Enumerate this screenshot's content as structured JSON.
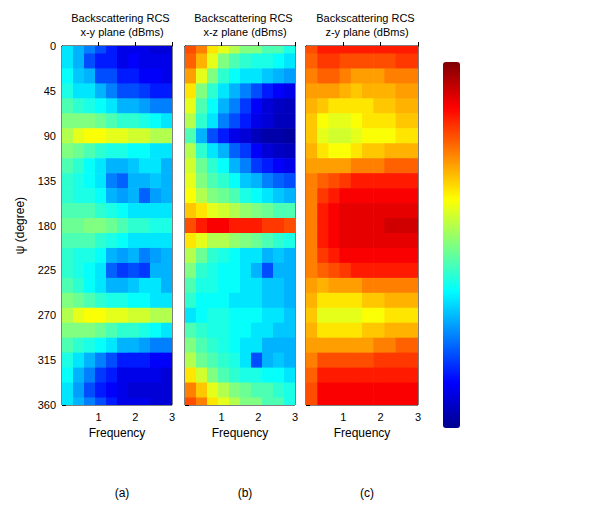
{
  "chart_data": [
    {
      "type": "heatmap",
      "title": "Backscattering RCS x-y plane (dBms)",
      "xlabel": "Frequency",
      "ylabel": "ψ (degree)",
      "caption": "(a)",
      "xlim": [
        0,
        3
      ],
      "xticks": [
        1,
        2,
        3
      ],
      "ylim": [
        0,
        360
      ],
      "yticks": [
        0,
        45,
        90,
        135,
        180,
        225,
        270,
        315,
        360
      ],
      "tick_labels": true,
      "x_edges": [
        0,
        0.3,
        0.6,
        0.9,
        1.2,
        1.5,
        1.8,
        2.1,
        2.4,
        2.7,
        3.0
      ],
      "y": [
        0,
        15,
        30,
        45,
        60,
        75,
        90,
        105,
        120,
        135,
        150,
        165,
        180,
        195,
        210,
        225,
        240,
        255,
        270,
        285,
        300,
        315,
        330,
        345,
        360
      ],
      "color_range": [
        0,
        1
      ],
      "color_ticks": [],
      "cells": [
        [
          0.35,
          0.3,
          0.25,
          0.2,
          0.15,
          0.1,
          0.1,
          0.1,
          0.08,
          0.08
        ],
        [
          0.35,
          0.3,
          0.2,
          0.15,
          0.15,
          0.1,
          0.12,
          0.1,
          0.1,
          0.1
        ],
        [
          0.38,
          0.32,
          0.3,
          0.2,
          0.2,
          0.15,
          0.15,
          0.12,
          0.12,
          0.1
        ],
        [
          0.4,
          0.35,
          0.35,
          0.3,
          0.25,
          0.2,
          0.2,
          0.18,
          0.15,
          0.15
        ],
        [
          0.45,
          0.42,
          0.4,
          0.38,
          0.35,
          0.3,
          0.3,
          0.28,
          0.25,
          0.25
        ],
        [
          0.5,
          0.5,
          0.5,
          0.48,
          0.45,
          0.42,
          0.42,
          0.4,
          0.38,
          0.35
        ],
        [
          0.55,
          0.6,
          0.62,
          0.62,
          0.6,
          0.6,
          0.58,
          0.58,
          0.55,
          0.55
        ],
        [
          0.5,
          0.48,
          0.45,
          0.42,
          0.4,
          0.4,
          0.38,
          0.38,
          0.35,
          0.35
        ],
        [
          0.45,
          0.42,
          0.38,
          0.35,
          0.3,
          0.3,
          0.32,
          0.35,
          0.35,
          0.3
        ],
        [
          0.42,
          0.4,
          0.38,
          0.35,
          0.25,
          0.22,
          0.3,
          0.3,
          0.32,
          0.3
        ],
        [
          0.42,
          0.4,
          0.4,
          0.38,
          0.3,
          0.28,
          0.3,
          0.22,
          0.28,
          0.3
        ],
        [
          0.45,
          0.45,
          0.45,
          0.42,
          0.4,
          0.38,
          0.35,
          0.35,
          0.35,
          0.35
        ],
        [
          0.48,
          0.48,
          0.5,
          0.5,
          0.48,
          0.45,
          0.42,
          0.42,
          0.4,
          0.4
        ],
        [
          0.45,
          0.45,
          0.45,
          0.42,
          0.4,
          0.38,
          0.35,
          0.35,
          0.35,
          0.35
        ],
        [
          0.42,
          0.4,
          0.4,
          0.38,
          0.3,
          0.28,
          0.3,
          0.25,
          0.28,
          0.3
        ],
        [
          0.42,
          0.4,
          0.38,
          0.35,
          0.22,
          0.18,
          0.2,
          0.18,
          0.3,
          0.3
        ],
        [
          0.45,
          0.42,
          0.38,
          0.35,
          0.3,
          0.3,
          0.32,
          0.35,
          0.35,
          0.3
        ],
        [
          0.5,
          0.48,
          0.45,
          0.42,
          0.4,
          0.4,
          0.38,
          0.38,
          0.35,
          0.35
        ],
        [
          0.55,
          0.6,
          0.62,
          0.62,
          0.6,
          0.6,
          0.58,
          0.58,
          0.55,
          0.55
        ],
        [
          0.5,
          0.5,
          0.5,
          0.48,
          0.45,
          0.42,
          0.42,
          0.4,
          0.38,
          0.35
        ],
        [
          0.45,
          0.42,
          0.4,
          0.38,
          0.35,
          0.3,
          0.3,
          0.28,
          0.25,
          0.25
        ],
        [
          0.4,
          0.35,
          0.3,
          0.25,
          0.2,
          0.15,
          0.15,
          0.15,
          0.12,
          0.12
        ],
        [
          0.38,
          0.3,
          0.25,
          0.18,
          0.15,
          0.1,
          0.1,
          0.1,
          0.1,
          0.08
        ],
        [
          0.35,
          0.28,
          0.2,
          0.15,
          0.12,
          0.1,
          0.08,
          0.08,
          0.08,
          0.08
        ],
        [
          0.35,
          0.3,
          0.25,
          0.2,
          0.15,
          0.1,
          0.1,
          0.1,
          0.08,
          0.08
        ]
      ]
    },
    {
      "type": "heatmap",
      "title": "Backscattering RCS x-z plane (dBms)",
      "xlabel": "Frequency",
      "caption": "(b)",
      "xlim": [
        0,
        3
      ],
      "xticks": [
        1,
        2,
        3
      ],
      "ylim": [
        0,
        360
      ],
      "yticks": [
        0,
        45,
        90,
        135,
        180,
        225,
        270,
        315,
        360
      ],
      "tick_labels": "x",
      "x_edges": [
        0,
        0.3,
        0.6,
        0.9,
        1.2,
        1.5,
        1.8,
        2.1,
        2.4,
        2.7,
        3.0
      ],
      "y": [
        0,
        15,
        30,
        45,
        60,
        75,
        90,
        105,
        120,
        135,
        150,
        165,
        180,
        195,
        210,
        225,
        240,
        255,
        270,
        285,
        300,
        315,
        330,
        345,
        360
      ],
      "color_range": [
        0,
        1
      ],
      "color_ticks": [],
      "cells": [
        [
          0.8,
          0.75,
          0.65,
          0.6,
          0.55,
          0.5,
          0.5,
          0.45,
          0.45,
          0.4
        ],
        [
          0.78,
          0.7,
          0.6,
          0.5,
          0.45,
          0.42,
          0.4,
          0.4,
          0.38,
          0.35
        ],
        [
          0.72,
          0.6,
          0.5,
          0.42,
          0.38,
          0.35,
          0.35,
          0.32,
          0.3,
          0.28
        ],
        [
          0.65,
          0.5,
          0.42,
          0.35,
          0.3,
          0.25,
          0.2,
          0.15,
          0.12,
          0.1
        ],
        [
          0.6,
          0.45,
          0.38,
          0.3,
          0.25,
          0.18,
          0.12,
          0.08,
          0.06,
          0.05
        ],
        [
          0.55,
          0.42,
          0.35,
          0.25,
          0.2,
          0.15,
          0.1,
          0.08,
          0.05,
          0.05
        ],
        [
          0.45,
          0.3,
          0.2,
          0.15,
          0.1,
          0.08,
          0.05,
          0.03,
          0.03,
          0.02
        ],
        [
          0.55,
          0.42,
          0.35,
          0.3,
          0.22,
          0.18,
          0.12,
          0.08,
          0.06,
          0.05
        ],
        [
          0.58,
          0.48,
          0.42,
          0.38,
          0.3,
          0.25,
          0.18,
          0.15,
          0.12,
          0.1
        ],
        [
          0.6,
          0.5,
          0.45,
          0.42,
          0.38,
          0.32,
          0.3,
          0.25,
          0.22,
          0.2
        ],
        [
          0.62,
          0.55,
          0.5,
          0.48,
          0.45,
          0.4,
          0.38,
          0.35,
          0.32,
          0.3
        ],
        [
          0.68,
          0.65,
          0.6,
          0.58,
          0.55,
          0.52,
          0.5,
          0.48,
          0.45,
          0.45
        ],
        [
          0.8,
          0.85,
          0.88,
          0.88,
          0.85,
          0.85,
          0.85,
          0.82,
          0.82,
          0.8
        ],
        [
          0.65,
          0.6,
          0.55,
          0.55,
          0.52,
          0.5,
          0.48,
          0.45,
          0.42,
          0.4
        ],
        [
          0.55,
          0.48,
          0.42,
          0.4,
          0.38,
          0.35,
          0.35,
          0.3,
          0.32,
          0.3
        ],
        [
          0.5,
          0.42,
          0.4,
          0.38,
          0.38,
          0.35,
          0.3,
          0.2,
          0.3,
          0.3
        ],
        [
          0.45,
          0.4,
          0.4,
          0.38,
          0.38,
          0.35,
          0.35,
          0.32,
          0.32,
          0.3
        ],
        [
          0.42,
          0.38,
          0.38,
          0.38,
          0.35,
          0.35,
          0.35,
          0.32,
          0.32,
          0.3
        ],
        [
          0.35,
          0.38,
          0.4,
          0.4,
          0.38,
          0.38,
          0.38,
          0.35,
          0.35,
          0.32
        ],
        [
          0.45,
          0.42,
          0.4,
          0.4,
          0.38,
          0.38,
          0.35,
          0.35,
          0.32,
          0.32
        ],
        [
          0.5,
          0.45,
          0.42,
          0.4,
          0.38,
          0.35,
          0.35,
          0.3,
          0.3,
          0.3
        ],
        [
          0.55,
          0.48,
          0.45,
          0.42,
          0.4,
          0.35,
          0.2,
          0.3,
          0.32,
          0.3
        ],
        [
          0.65,
          0.58,
          0.5,
          0.45,
          0.42,
          0.4,
          0.4,
          0.38,
          0.38,
          0.35
        ],
        [
          0.75,
          0.68,
          0.6,
          0.55,
          0.5,
          0.48,
          0.45,
          0.45,
          0.42,
          0.4
        ],
        [
          0.8,
          0.75,
          0.65,
          0.6,
          0.55,
          0.5,
          0.5,
          0.45,
          0.45,
          0.4
        ]
      ]
    },
    {
      "type": "heatmap",
      "title": "Backscattering RCS z-y plane (dBms)",
      "xlabel": "Frequency",
      "caption": "(c)",
      "xlim": [
        0,
        3
      ],
      "xticks": [
        1,
        2,
        3
      ],
      "ylim": [
        0,
        360
      ],
      "yticks": [
        0,
        45,
        90,
        135,
        180,
        225,
        270,
        315,
        360
      ],
      "tick_labels": "x",
      "x_edges": [
        0,
        0.3,
        0.6,
        0.9,
        1.2,
        1.5,
        1.8,
        2.1,
        2.4,
        2.7,
        3.0
      ],
      "y": [
        0,
        15,
        30,
        45,
        60,
        75,
        90,
        105,
        120,
        135,
        150,
        165,
        180,
        195,
        210,
        225,
        240,
        255,
        270,
        285,
        300,
        315,
        330,
        345,
        360
      ],
      "color_range": [
        0,
        1
      ],
      "color_ticks": [],
      "cells": [
        [
          0.8,
          0.85,
          0.85,
          0.85,
          0.85,
          0.85,
          0.85,
          0.85,
          0.85,
          0.85
        ],
        [
          0.78,
          0.82,
          0.82,
          0.8,
          0.8,
          0.8,
          0.8,
          0.8,
          0.82,
          0.82
        ],
        [
          0.75,
          0.78,
          0.78,
          0.75,
          0.72,
          0.72,
          0.72,
          0.75,
          0.75,
          0.75
        ],
        [
          0.72,
          0.72,
          0.72,
          0.7,
          0.68,
          0.7,
          0.7,
          0.7,
          0.72,
          0.72
        ],
        [
          0.7,
          0.68,
          0.65,
          0.65,
          0.65,
          0.65,
          0.68,
          0.68,
          0.7,
          0.7
        ],
        [
          0.68,
          0.62,
          0.6,
          0.6,
          0.62,
          0.65,
          0.65,
          0.65,
          0.68,
          0.68
        ],
        [
          0.68,
          0.6,
          0.58,
          0.58,
          0.6,
          0.62,
          0.62,
          0.62,
          0.65,
          0.65
        ],
        [
          0.7,
          0.65,
          0.62,
          0.62,
          0.65,
          0.68,
          0.68,
          0.7,
          0.7,
          0.7
        ],
        [
          0.72,
          0.72,
          0.72,
          0.72,
          0.75,
          0.75,
          0.75,
          0.78,
          0.78,
          0.78
        ],
        [
          0.75,
          0.78,
          0.8,
          0.82,
          0.85,
          0.85,
          0.85,
          0.85,
          0.85,
          0.85
        ],
        [
          0.75,
          0.82,
          0.85,
          0.88,
          0.88,
          0.88,
          0.88,
          0.88,
          0.88,
          0.88
        ],
        [
          0.75,
          0.85,
          0.88,
          0.9,
          0.9,
          0.9,
          0.9,
          0.9,
          0.9,
          0.9
        ],
        [
          0.75,
          0.85,
          0.88,
          0.9,
          0.9,
          0.9,
          0.9,
          0.92,
          0.92,
          0.92
        ],
        [
          0.75,
          0.85,
          0.88,
          0.9,
          0.9,
          0.9,
          0.9,
          0.9,
          0.9,
          0.9
        ],
        [
          0.75,
          0.82,
          0.85,
          0.88,
          0.88,
          0.88,
          0.88,
          0.88,
          0.88,
          0.88
        ],
        [
          0.75,
          0.78,
          0.8,
          0.82,
          0.85,
          0.85,
          0.85,
          0.85,
          0.85,
          0.85
        ],
        [
          0.72,
          0.7,
          0.72,
          0.72,
          0.72,
          0.75,
          0.75,
          0.75,
          0.75,
          0.75
        ],
        [
          0.7,
          0.65,
          0.65,
          0.65,
          0.65,
          0.68,
          0.68,
          0.7,
          0.7,
          0.7
        ],
        [
          0.68,
          0.6,
          0.6,
          0.6,
          0.6,
          0.62,
          0.62,
          0.65,
          0.65,
          0.65
        ],
        [
          0.7,
          0.65,
          0.65,
          0.65,
          0.65,
          0.68,
          0.68,
          0.7,
          0.7,
          0.7
        ],
        [
          0.72,
          0.72,
          0.72,
          0.72,
          0.72,
          0.72,
          0.75,
          0.75,
          0.78,
          0.78
        ],
        [
          0.75,
          0.8,
          0.8,
          0.8,
          0.8,
          0.8,
          0.82,
          0.82,
          0.82,
          0.82
        ],
        [
          0.78,
          0.85,
          0.85,
          0.85,
          0.85,
          0.85,
          0.85,
          0.85,
          0.85,
          0.85
        ],
        [
          0.8,
          0.88,
          0.88,
          0.88,
          0.88,
          0.88,
          0.88,
          0.88,
          0.88,
          0.88
        ],
        [
          0.8,
          0.88,
          0.88,
          0.88,
          0.88,
          0.88,
          0.88,
          0.88,
          0.88,
          0.88
        ]
      ]
    }
  ]
}
